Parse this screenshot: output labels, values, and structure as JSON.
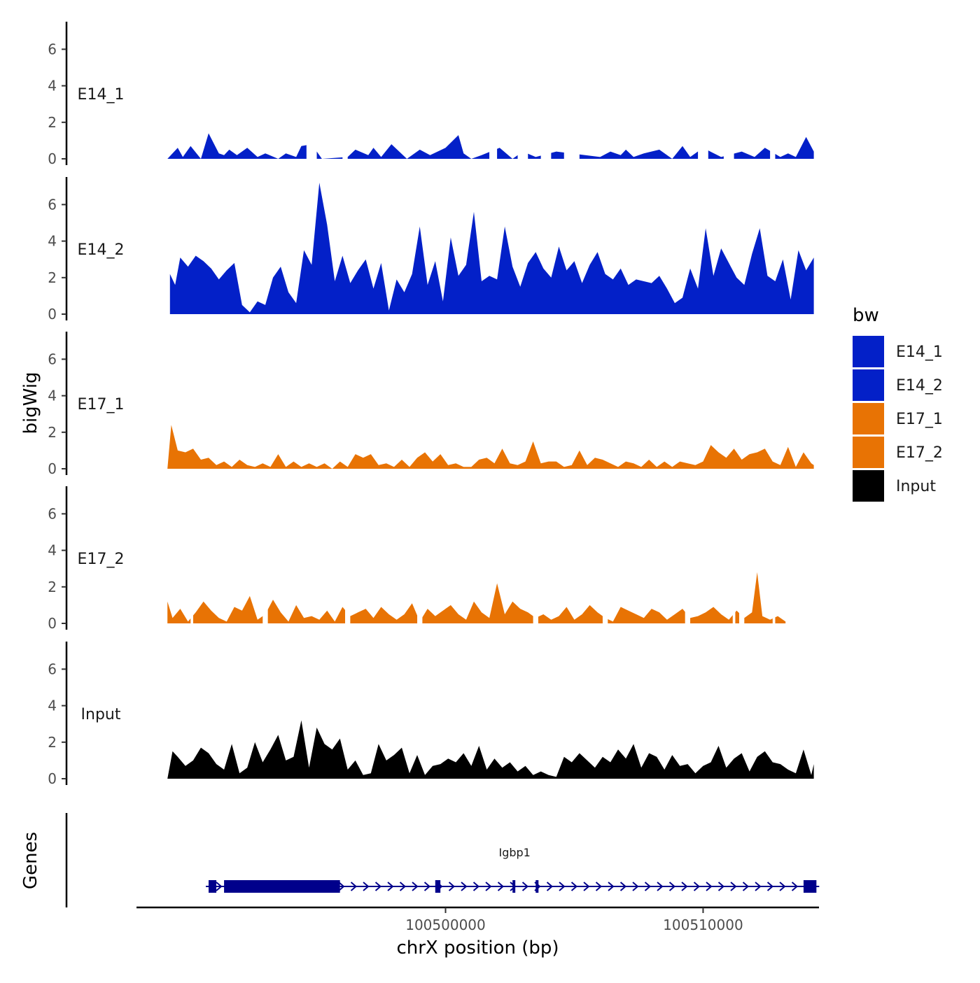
{
  "chart_data": {
    "type": "area",
    "title": "",
    "xlabel": "chrX position (bp)",
    "ylabel": "bigWig",
    "genes_label": "Genes",
    "xlim": [
      100488000,
      100514500
    ],
    "ylim": [
      0,
      7.5
    ],
    "y_ticks": [
      0,
      2,
      4,
      6
    ],
    "x_ticks": [
      100500000,
      100510000
    ],
    "x_tick_labels": [
      "100500000",
      "100510000"
    ],
    "legend": {
      "title": "bw",
      "position": "right",
      "entries": [
        {
          "name": "E14_1",
          "color": "#0320C8"
        },
        {
          "name": "E14_2",
          "color": "#0320C8"
        },
        {
          "name": "E17_1",
          "color": "#E87304"
        },
        {
          "name": "E17_2",
          "color": "#E87304"
        },
        {
          "name": "Input",
          "color": "#000000"
        }
      ]
    },
    "series": [
      {
        "name": "E14_1",
        "color": "#0320C8",
        "x": [
          100489200,
          100489600,
          100489800,
          100490100,
          100490500,
          100490800,
          100491200,
          100491400,
          100491600,
          100491900,
          100492300,
          100492700,
          100493000,
          100493500,
          100493800,
          100494200,
          100494400,
          100494800,
          100495200,
          100496200,
          100496500,
          100497000,
          100497200,
          100497500,
          100497900,
          100498500,
          100499000,
          100499400,
          100500000,
          100500500,
          100500700,
          100501000,
          100501400,
          100502100,
          100502600,
          100503000,
          100503500,
          100504300,
          100506000,
          100506400,
          100506800,
          100507000,
          100507300,
          100507700,
          100508300,
          100508800,
          100509200,
          100509500,
          100510000,
          100510700,
          100511500,
          100512000,
          100512400,
          100513000,
          100513300,
          100513600,
          100514000,
          100514300
        ],
        "values": [
          0,
          0.6,
          0.1,
          0.7,
          0,
          1.4,
          0.3,
          0.2,
          0.5,
          0.2,
          0.6,
          0.1,
          0.3,
          0,
          0.3,
          0.1,
          0.7,
          0.8,
          0,
          0.1,
          0.5,
          0.2,
          0.6,
          0.1,
          0.8,
          0,
          0.5,
          0.2,
          0.6,
          1.3,
          0.3,
          0,
          0.2,
          0.6,
          0,
          0.4,
          0.1,
          0.4,
          0.1,
          0.4,
          0.2,
          0.5,
          0.1,
          0.3,
          0.5,
          0,
          0.7,
          0.1,
          0.6,
          0.1,
          0.4,
          0.1,
          0.6,
          0.1,
          0.3,
          0.1,
          1.2,
          0.4
        ],
        "gaps": [
          [
            100494600,
            100495000
          ],
          [
            100496000,
            100496200
          ],
          [
            100501700,
            100502000
          ],
          [
            100502800,
            100503200
          ],
          [
            100503700,
            100504100
          ],
          [
            100504600,
            100505200
          ],
          [
            100509800,
            100510200
          ],
          [
            100510800,
            100511200
          ],
          [
            100512600,
            100512800
          ]
        ]
      },
      {
        "name": "E14_2",
        "color": "#0320C8",
        "x": [
          100489300,
          100489500,
          100489700,
          100490000,
          100490300,
          100490600,
          100490900,
          100491200,
          100491500,
          100491800,
          100492100,
          100492400,
          100492700,
          100493000,
          100493300,
          100493600,
          100493900,
          100494200,
          100494500,
          100494800,
          100495100,
          100495400,
          100495700,
          100496000,
          100496300,
          100496600,
          100496900,
          100497200,
          100497500,
          100497800,
          100498100,
          100498400,
          100498700,
          100499000,
          100499300,
          100499600,
          100499900,
          100500200,
          100500500,
          100500800,
          100501100,
          100501400,
          100501700,
          100502000,
          100502300,
          100502600,
          100502900,
          100503200,
          100503500,
          100503800,
          100504100,
          100504400,
          100504700,
          100505000,
          100505300,
          100505600,
          100505900,
          100506200,
          100506500,
          100506800,
          100507100,
          100507400,
          100507700,
          100508000,
          100508300,
          100508600,
          100508900,
          100509200,
          100509500,
          100509800,
          100510100,
          100510400,
          100510700,
          100511000,
          100511300,
          100511600,
          100511900,
          100512200,
          100512500,
          100512800,
          100513100,
          100513400,
          100513700,
          100514000,
          100514300
        ],
        "values": [
          2.2,
          1.6,
          3.1,
          2.6,
          3.2,
          2.9,
          2.5,
          1.9,
          2.4,
          2.8,
          0.5,
          0.1,
          0.7,
          0.5,
          2.0,
          2.6,
          1.2,
          0.6,
          3.5,
          2.7,
          7.2,
          4.9,
          1.8,
          3.2,
          1.7,
          2.4,
          3.0,
          1.4,
          2.8,
          0.2,
          1.9,
          1.2,
          2.2,
          4.8,
          1.6,
          2.9,
          0.7,
          4.2,
          2.1,
          2.7,
          5.6,
          1.8,
          2.1,
          1.9,
          4.8,
          2.6,
          1.5,
          2.8,
          3.4,
          2.5,
          2.0,
          3.7,
          2.4,
          2.9,
          1.7,
          2.7,
          3.4,
          2.2,
          1.9,
          2.5,
          1.6,
          1.9,
          1.8,
          1.7,
          2.1,
          1.4,
          0.6,
          0.9,
          2.5,
          1.4,
          4.7,
          2.1,
          3.6,
          2.8,
          2.0,
          1.6,
          3.3,
          4.7,
          2.1,
          1.8,
          3.0,
          0.8,
          3.5,
          2.4,
          3.1
        ],
        "gaps": []
      },
      {
        "name": "E17_1",
        "color": "#E87304",
        "x": [
          100489200,
          100489350,
          100489600,
          100489900,
          100490200,
          100490500,
          100490800,
          100491100,
          100491400,
          100491700,
          100492000,
          100492300,
          100492600,
          100492900,
          100493200,
          100493500,
          100493800,
          100494100,
          100494400,
          100494700,
          100495000,
          100495300,
          100495600,
          100495900,
          100496200,
          100496500,
          100496800,
          100497100,
          100497400,
          100497700,
          100498000,
          100498300,
          100498600,
          100498900,
          100499200,
          100499500,
          100499800,
          100500100,
          100500400,
          100500700,
          100501000,
          100501300,
          100501600,
          100501900,
          100502200,
          100502500,
          100502800,
          100503100,
          100503400,
          100503700,
          100504000,
          100504300,
          100504600,
          100504900,
          100505200,
          100505500,
          100505800,
          100506100,
          100506400,
          100506700,
          100507000,
          100507300,
          100507600,
          100507900,
          100508200,
          100508500,
          100508800,
          100509100,
          100509400,
          100509700,
          100510000,
          100510300,
          100510600,
          100510900,
          100511200,
          100511500,
          100511800,
          100512100,
          100512400,
          100512700,
          100513000,
          100513300,
          100513600,
          100513900,
          100514200,
          100514300
        ],
        "values": [
          0,
          2.4,
          1.0,
          0.9,
          1.1,
          0.5,
          0.6,
          0.2,
          0.4,
          0.1,
          0.5,
          0.2,
          0.1,
          0.3,
          0.1,
          0.8,
          0.1,
          0.4,
          0.1,
          0.3,
          0.1,
          0.3,
          0.0,
          0.4,
          0.1,
          0.8,
          0.6,
          0.8,
          0.2,
          0.3,
          0.1,
          0.5,
          0.1,
          0.6,
          0.9,
          0.4,
          0.8,
          0.2,
          0.3,
          0.1,
          0.1,
          0.5,
          0.6,
          0.3,
          1.1,
          0.3,
          0.2,
          0.4,
          1.5,
          0.3,
          0.4,
          0.4,
          0.1,
          0.2,
          1.0,
          0.2,
          0.6,
          0.5,
          0.3,
          0.1,
          0.4,
          0.3,
          0.1,
          0.5,
          0.1,
          0.4,
          0.1,
          0.4,
          0.3,
          0.2,
          0.4,
          1.3,
          0.9,
          0.6,
          1.1,
          0.5,
          0.8,
          0.9,
          1.1,
          0.4,
          0.2,
          1.2,
          0.1,
          0.9,
          0.3,
          0.2
        ],
        "gaps": []
      },
      {
        "name": "E17_2",
        "color": "#E87304",
        "x": [
          100489200,
          100489400,
          100489700,
          100490000,
          100490300,
          100490600,
          100490900,
          100491200,
          100491500,
          100491800,
          100492100,
          100492400,
          100492700,
          100493000,
          100493300,
          100493600,
          100493900,
          100494200,
          100494500,
          100494800,
          100495100,
          100495400,
          100495700,
          100496000,
          100496300,
          100496600,
          100496900,
          100497200,
          100497500,
          100497800,
          100498100,
          100498400,
          100498700,
          100499000,
          100499300,
          100499600,
          100499900,
          100500200,
          100500500,
          100500800,
          100501100,
          100501400,
          100501700,
          100502000,
          100502300,
          100502600,
          100502900,
          100503200,
          100503500,
          100503800,
          100504100,
          100504400,
          100504700,
          100505000,
          100505300,
          100505600,
          100505900,
          100506200,
          100506500,
          100506800,
          100507100,
          100507400,
          100507700,
          100508000,
          100508300,
          100508600,
          100508900,
          100509200,
          100509500,
          100509800,
          100510100,
          100510400,
          100510700,
          100511000,
          100511300,
          100511600,
          100511900,
          100512100,
          100512300,
          100512600,
          100512900,
          100513200
        ],
        "values": [
          1.2,
          0.3,
          0.8,
          0.1,
          0.6,
          1.2,
          0.7,
          0.3,
          0.1,
          0.9,
          0.7,
          1.5,
          0.2,
          0.5,
          1.3,
          0.6,
          0.1,
          1.0,
          0.3,
          0.4,
          0.2,
          0.7,
          0.1,
          0.9,
          0.4,
          0.6,
          0.8,
          0.3,
          0.9,
          0.5,
          0.2,
          0.5,
          1.1,
          0.1,
          0.8,
          0.4,
          0.7,
          1.0,
          0.5,
          0.2,
          1.2,
          0.6,
          0.3,
          2.2,
          0.5,
          1.2,
          0.8,
          0.6,
          0.3,
          0.5,
          0.2,
          0.4,
          0.9,
          0.2,
          0.5,
          1.0,
          0.6,
          0.3,
          0.1,
          0.9,
          0.7,
          0.5,
          0.3,
          0.8,
          0.6,
          0.2,
          0.5,
          0.8,
          0.3,
          0.4,
          0.6,
          0.9,
          0.5,
          0.2,
          0.7,
          0.3,
          0.6,
          2.8,
          0.4,
          0.2,
          0.4,
          0.1
        ],
        "gaps": [
          [
            100490100,
            100490200
          ],
          [
            100492900,
            100493100
          ],
          [
            100496100,
            100496300
          ],
          [
            100498900,
            100499100
          ],
          [
            100503400,
            100503600
          ],
          [
            100506100,
            100506300
          ],
          [
            100509300,
            100509500
          ],
          [
            100511150,
            100511250
          ],
          [
            100511400,
            100511600
          ],
          [
            100512700,
            100512800
          ],
          [
            100513300,
            100514100
          ]
        ]
      },
      {
        "name": "Input",
        "color": "#000000",
        "x": [
          100489200,
          100489400,
          100489600,
          100489900,
          100490200,
          100490500,
          100490800,
          100491100,
          100491400,
          100491700,
          100492000,
          100492300,
          100492600,
          100492900,
          100493200,
          100493500,
          100493800,
          100494100,
          100494400,
          100494700,
          100495000,
          100495300,
          100495600,
          100495900,
          100496200,
          100496500,
          100496800,
          100497100,
          100497400,
          100497700,
          100498000,
          100498300,
          100498600,
          100498900,
          100499200,
          100499500,
          100499800,
          100500100,
          100500400,
          100500700,
          100501000,
          100501300,
          100501600,
          100501900,
          100502200,
          100502500,
          100502800,
          100503100,
          100503400,
          100503700,
          100504000,
          100504300,
          100504600,
          100504900,
          100505200,
          100505500,
          100505800,
          100506100,
          100506400,
          100506700,
          100507000,
          100507300,
          100507600,
          100507900,
          100508200,
          100508500,
          100508800,
          100509100,
          100509400,
          100509700,
          100510000,
          100510300,
          100510600,
          100510900,
          100511200,
          100511500,
          100511800,
          100512100,
          100512400,
          100512700,
          100513000,
          100513300,
          100513600,
          100513900,
          100514200,
          100514300
        ],
        "values": [
          0,
          1.5,
          1.2,
          0.7,
          1.0,
          1.7,
          1.4,
          0.8,
          0.5,
          1.9,
          0.3,
          0.6,
          2.0,
          0.9,
          1.6,
          2.4,
          1.0,
          1.2,
          3.2,
          0.6,
          2.8,
          1.9,
          1.6,
          2.2,
          0.5,
          1.0,
          0.2,
          0.3,
          1.9,
          1.0,
          1.3,
          1.7,
          0.3,
          1.3,
          0.2,
          0.7,
          0.8,
          1.1,
          0.9,
          1.4,
          0.7,
          1.8,
          0.5,
          1.1,
          0.6,
          0.9,
          0.4,
          0.7,
          0.2,
          0.4,
          0.2,
          0.1,
          1.2,
          0.9,
          1.4,
          1.0,
          0.6,
          1.2,
          0.9,
          1.6,
          1.1,
          1.9,
          0.6,
          1.4,
          1.2,
          0.5,
          1.3,
          0.7,
          0.8,
          0.3,
          0.7,
          0.9,
          1.8,
          0.6,
          1.1,
          1.4,
          0.4,
          1.2,
          1.5,
          0.9,
          0.8,
          0.5,
          0.3,
          1.6,
          0.2,
          0.8
        ],
        "gaps": []
      }
    ],
    "gene_track": {
      "name": "Igbp1",
      "color": "#00008B",
      "start": 100490800,
      "end": 100514400,
      "exons": [
        [
          100490800,
          100491100
        ],
        [
          100491400,
          100495900
        ],
        [
          100499600,
          100499800
        ],
        [
          100502600,
          100502700
        ],
        [
          100503500,
          100503600
        ],
        [
          100513900,
          100514400
        ]
      ]
    }
  }
}
